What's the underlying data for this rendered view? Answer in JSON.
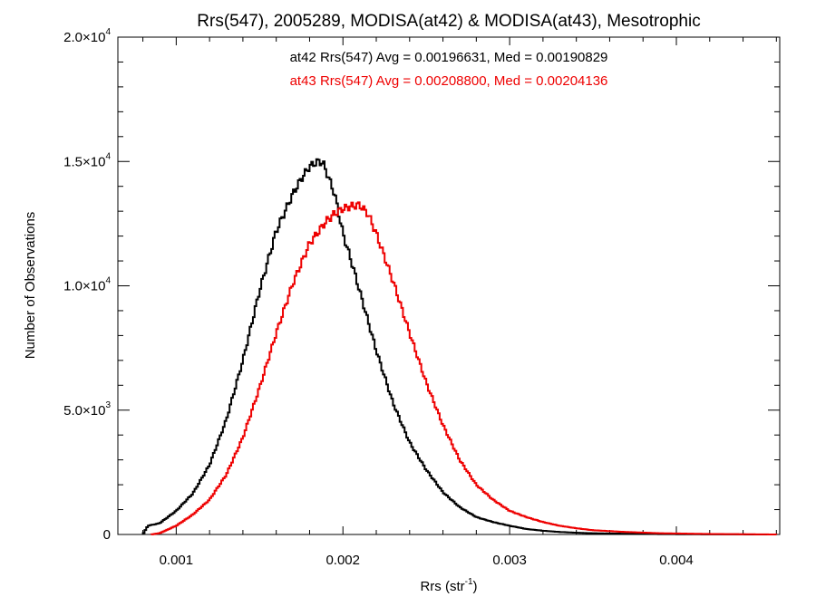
{
  "colors": {
    "at42": "#000000",
    "at43": "#ee0000",
    "axis": "#000000",
    "background": "#ffffff"
  },
  "chart_data": {
    "type": "line",
    "style": "step-histogram",
    "title": "Rrs(547), 2005289, MODISA(at42) & MODISA(at43), Mesotrophic",
    "xlabel": {
      "text": "Rrs (str",
      "sup": "-1",
      "suffix": ")"
    },
    "ylabel": "Number of Observations",
    "xlim": [
      0.00065,
      0.00462
    ],
    "ylim": [
      0,
      20000
    ],
    "x_ticks": [
      {
        "value": 0.001,
        "label": "0.001"
      },
      {
        "value": 0.002,
        "label": "0.002"
      },
      {
        "value": 0.003,
        "label": "0.003"
      },
      {
        "value": 0.004,
        "label": "0.004"
      }
    ],
    "y_ticks": [
      {
        "value": 0,
        "mant": "0",
        "exp": ""
      },
      {
        "value": 5000,
        "mant": "5.0×10",
        "exp": "3"
      },
      {
        "value": 10000,
        "mant": "1.0×10",
        "exp": "4"
      },
      {
        "value": 15000,
        "mant": "1.5×10",
        "exp": "4"
      },
      {
        "value": 20000,
        "mant": "2.0×10",
        "exp": "4"
      }
    ],
    "grid": false,
    "series": [
      {
        "key": "at42",
        "annotation": "at42 Rrs(547) Avg = 0.00196631, Med = 0.00190829",
        "x": [
          0.0008,
          0.00083,
          0.0009,
          0.001,
          0.0011,
          0.0012,
          0.0013,
          0.0014,
          0.0015,
          0.0016,
          0.0017,
          0.00175,
          0.0018,
          0.00185,
          0.00188,
          0.0019,
          0.00195,
          0.002,
          0.00205,
          0.0021,
          0.0022,
          0.0023,
          0.0024,
          0.0025,
          0.0026,
          0.0027,
          0.0028,
          0.0029,
          0.003,
          0.0031,
          0.0032,
          0.0033,
          0.0034,
          0.0035,
          0.0037,
          0.0039,
          0.0042,
          0.0046
        ],
        "y": [
          0,
          350,
          450,
          950,
          1650,
          2800,
          4600,
          7000,
          9800,
          12200,
          13700,
          14300,
          14800,
          15000,
          14950,
          14600,
          13700,
          12100,
          11000,
          9800,
          7400,
          5300,
          3700,
          2600,
          1700,
          1100,
          700,
          500,
          350,
          220,
          150,
          100,
          70,
          50,
          30,
          15,
          5,
          0
        ]
      },
      {
        "key": "at43",
        "annotation": "at43 Rrs(547) Avg = 0.00208800, Med = 0.00204136",
        "x": [
          0.00085,
          0.0009,
          0.001,
          0.0011,
          0.0012,
          0.0013,
          0.0014,
          0.0015,
          0.0016,
          0.0017,
          0.0018,
          0.0019,
          0.00195,
          0.002,
          0.00205,
          0.0021,
          0.00215,
          0.0022,
          0.0023,
          0.0024,
          0.0025,
          0.0026,
          0.0027,
          0.0028,
          0.0029,
          0.003,
          0.0031,
          0.0032,
          0.0033,
          0.0034,
          0.0035,
          0.0037,
          0.0039,
          0.0042,
          0.0046
        ],
        "y": [
          0,
          50,
          350,
          800,
          1400,
          2400,
          3900,
          5900,
          8100,
          10100,
          11700,
          12600,
          12900,
          13100,
          13200,
          13250,
          12900,
          12100,
          10200,
          8100,
          6100,
          4400,
          3000,
          2000,
          1400,
          950,
          700,
          500,
          350,
          250,
          170,
          100,
          50,
          20,
          0
        ]
      }
    ]
  }
}
